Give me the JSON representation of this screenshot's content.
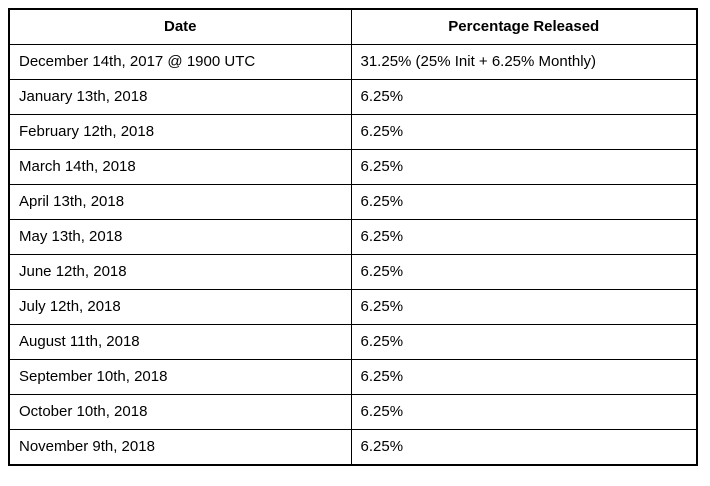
{
  "colors": {
    "border": "#000000",
    "text": "#000000",
    "background": "#ffffff"
  },
  "table": {
    "columns": {
      "date": "Date",
      "percentage": "Percentage Released"
    },
    "rows": [
      {
        "date": "December 14th, 2017 @ 1900 UTC",
        "percentage": "31.25% (25% Init + 6.25% Monthly)"
      },
      {
        "date": "January 13th, 2018",
        "percentage": "6.25%"
      },
      {
        "date": "February 12th, 2018",
        "percentage": "6.25%"
      },
      {
        "date": "March 14th, 2018",
        "percentage": "6.25%"
      },
      {
        "date": "April 13th, 2018",
        "percentage": "6.25%"
      },
      {
        "date": "May 13th, 2018",
        "percentage": "6.25%"
      },
      {
        "date": "June 12th, 2018",
        "percentage": "6.25%"
      },
      {
        "date": "July 12th, 2018",
        "percentage": "6.25%"
      },
      {
        "date": "August 11th, 2018",
        "percentage": "6.25%"
      },
      {
        "date": "September 10th, 2018",
        "percentage": "6.25%"
      },
      {
        "date": "October 10th, 2018",
        "percentage": "6.25%"
      },
      {
        "date": "November 9th, 2018",
        "percentage": "6.25%"
      }
    ]
  }
}
